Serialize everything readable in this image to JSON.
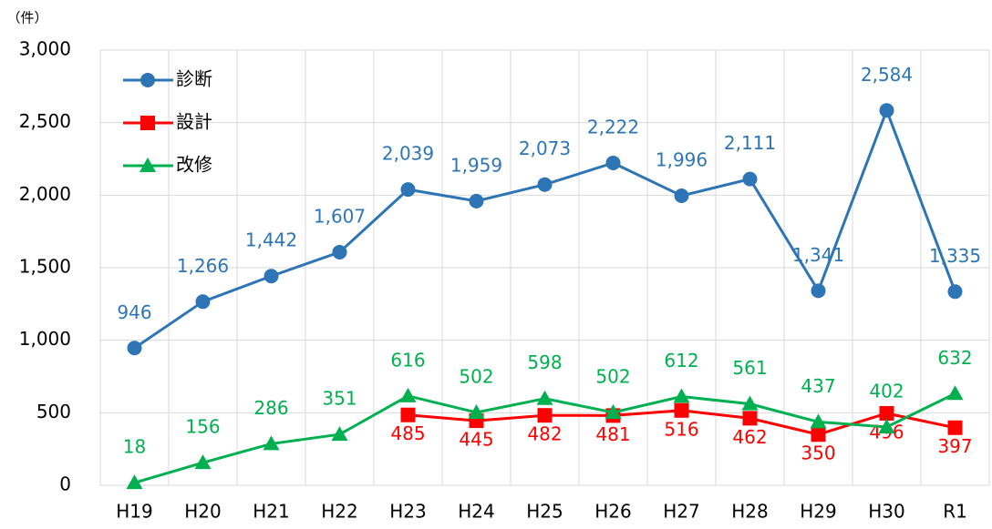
{
  "chart_data": {
    "type": "line",
    "unit_label": "（件）",
    "categories": [
      "H19",
      "H20",
      "H21",
      "H22",
      "H23",
      "H24",
      "H25",
      "H26",
      "H27",
      "H28",
      "H29",
      "H30",
      "R1"
    ],
    "series": [
      {
        "name": "診断",
        "color": "#2e75b6",
        "marker": "circle",
        "values": [
          946,
          1266,
          1442,
          1607,
          2039,
          1959,
          2073,
          2222,
          1996,
          2111,
          1341,
          2584,
          1335
        ],
        "value_labels": [
          "946",
          "1,266",
          "1,442",
          "1,607",
          "2,039",
          "1,959",
          "2,073",
          "2,222",
          "1,996",
          "2,111",
          "1,341",
          "2,584",
          "1,335"
        ]
      },
      {
        "name": "設計",
        "color": "#ff0000",
        "marker": "square",
        "values": [
          null,
          null,
          null,
          null,
          485,
          445,
          482,
          481,
          516,
          462,
          350,
          496,
          397
        ]
      },
      {
        "name": "改修",
        "color": "#00b050",
        "marker": "triangle",
        "values": [
          18,
          156,
          286,
          351,
          616,
          502,
          598,
          502,
          612,
          561,
          437,
          402,
          632
        ]
      }
    ],
    "ylim": [
      0,
      3000
    ],
    "yticks": [
      0,
      500,
      {
        "value": 1000,
        "label": "1,000"
      },
      {
        "value": 1500,
        "label": "1,500"
      },
      {
        "value": 2000,
        "label": "2,000"
      },
      {
        "value": 2500,
        "label": "2,500"
      },
      {
        "value": 3000,
        "label": "3,000"
      }
    ],
    "grid": true,
    "legend": "upper left"
  }
}
